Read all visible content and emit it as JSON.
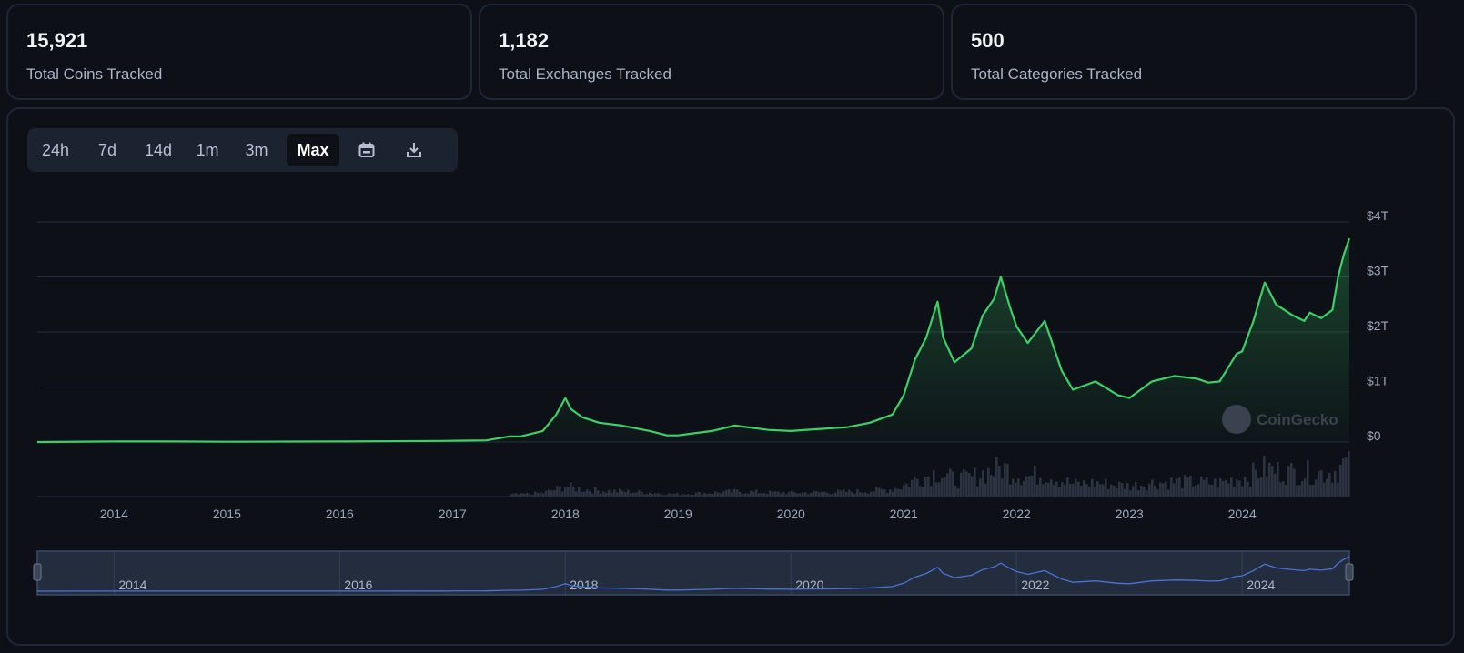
{
  "stats": [
    {
      "value": "15,921",
      "label": "Total Coins Tracked"
    },
    {
      "value": "1,182",
      "label": "Total Exchanges Tracked"
    },
    {
      "value": "500",
      "label": "Total Categories Tracked"
    }
  ],
  "range_buttons": [
    {
      "label": "24h",
      "active": false
    },
    {
      "label": "7d",
      "active": false
    },
    {
      "label": "14d",
      "active": false
    },
    {
      "label": "1m",
      "active": false
    },
    {
      "label": "3m",
      "active": false
    },
    {
      "label": "Max",
      "active": true
    }
  ],
  "toolbar_icons": [
    "calendar-icon",
    "download-icon"
  ],
  "watermark": "CoinGecko",
  "colors": {
    "line": "#3dd068",
    "volume": "#2d3441",
    "navigator_line": "#4a72d6",
    "navigator_bg": "#242d3e",
    "grid": "#262d38"
  },
  "chart_data": {
    "type": "area",
    "y_tick_labels": [
      "$0",
      "$1T",
      "$2T",
      "$3T",
      "$4T"
    ],
    "ylim": [
      0,
      4
    ],
    "y_unit": "trillion USD",
    "x_tick_labels": [
      "2014",
      "2015",
      "2016",
      "2017",
      "2018",
      "2019",
      "2020",
      "2021",
      "2022",
      "2023",
      "2024"
    ],
    "xlim": [
      2013.32,
      2024.95
    ],
    "grid": true,
    "series": [
      {
        "type": "line",
        "x": [
          2013.32,
          2014.0,
          2014.5,
          2015.0,
          2016.0,
          2016.9,
          2017.3,
          2017.5,
          2017.6,
          2017.8,
          2017.92,
          2018.0,
          2018.05,
          2018.15,
          2018.3,
          2018.5,
          2018.75,
          2018.9,
          2019.0,
          2019.3,
          2019.5,
          2019.8,
          2020.0,
          2020.2,
          2020.5,
          2020.7,
          2020.9,
          2021.0,
          2021.1,
          2021.2,
          2021.3,
          2021.35,
          2021.45,
          2021.6,
          2021.7,
          2021.8,
          2021.86,
          2021.95,
          2022.0,
          2022.1,
          2022.25,
          2022.4,
          2022.5,
          2022.7,
          2022.9,
          2023.0,
          2023.2,
          2023.4,
          2023.6,
          2023.7,
          2023.8,
          2023.95,
          2024.0,
          2024.1,
          2024.2,
          2024.3,
          2024.45,
          2024.55,
          2024.6,
          2024.7,
          2024.8,
          2024.85,
          2024.9,
          2024.95
        ],
        "y": [
          0.0,
          0.01,
          0.01,
          0.005,
          0.01,
          0.02,
          0.03,
          0.1,
          0.1,
          0.2,
          0.5,
          0.8,
          0.6,
          0.45,
          0.35,
          0.3,
          0.2,
          0.12,
          0.12,
          0.2,
          0.3,
          0.22,
          0.2,
          0.23,
          0.27,
          0.35,
          0.5,
          0.85,
          1.5,
          1.9,
          2.55,
          1.9,
          1.45,
          1.7,
          2.3,
          2.6,
          3.0,
          2.4,
          2.1,
          1.8,
          2.2,
          1.3,
          0.95,
          1.1,
          0.85,
          0.8,
          1.1,
          1.2,
          1.15,
          1.08,
          1.1,
          1.6,
          1.65,
          2.2,
          2.9,
          2.5,
          2.3,
          2.2,
          2.35,
          2.25,
          2.4,
          3.0,
          3.4,
          3.7
        ]
      }
    ],
    "navigator": {
      "x_tick_labels": [
        "2014",
        "2016",
        "2018",
        "2020",
        "2022",
        "2024"
      ]
    }
  }
}
